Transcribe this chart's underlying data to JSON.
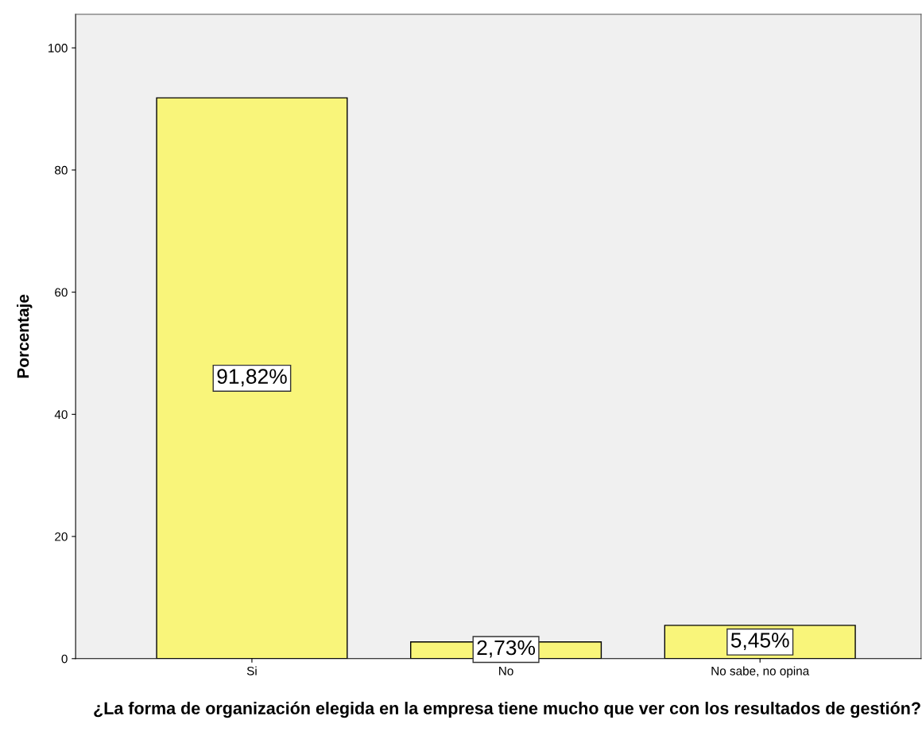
{
  "chart_data": {
    "type": "bar",
    "categories": [
      "Si",
      "No",
      "No sabe, no opina"
    ],
    "values": [
      91.82,
      2.73,
      5.45
    ],
    "value_labels": [
      "91,82%",
      "2,73%",
      "5,45%"
    ],
    "color": "#f9f57a",
    "ylim": [
      0,
      105.5
    ],
    "yticks": [
      0,
      20,
      40,
      60,
      80,
      100
    ],
    "xlabel": "¿La forma de organización elegida en la empresa tiene mucho que ver con los resultados de gestión?",
    "ylabel": "Porcentaje",
    "grid": false,
    "legend": false
  }
}
